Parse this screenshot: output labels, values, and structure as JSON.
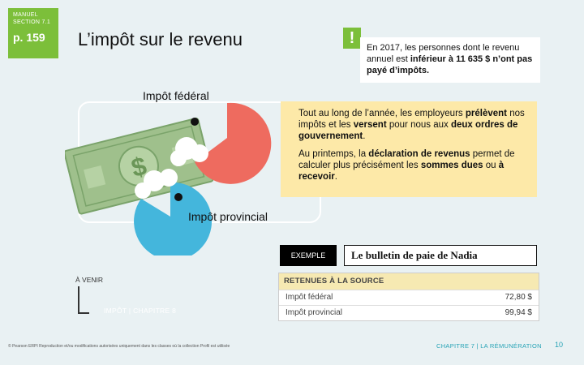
{
  "badge": {
    "manual": "MANUEL",
    "section": "SECTION 7.1",
    "page": "p. 159"
  },
  "title": "L’impôt sur le revenu",
  "alert": {
    "icon": "!",
    "text_before": "En 2017, les personnes dont le revenu annuel est ",
    "bold1": "inférieur à 11 635 $ n’ont pas payé d’impôts."
  },
  "labels": {
    "federal": "Impôt fédéral",
    "provincial": "Impôt provincial"
  },
  "info": {
    "p1_a": "Tout au long de l’année, les employeurs ",
    "p1_b": "prélèvent",
    "p1_c": " nos impôts et les ",
    "p1_d": "versent",
    "p1_e": " pour nous aux ",
    "p1_f": "deux ordres de gouvernement",
    "p1_g": ".",
    "p2_a": "Au printemps, la ",
    "p2_b": "déclaration de revenus",
    "p2_c": " permet  de calculer plus précisément les ",
    "p2_d": "sommes dues",
    "p2_e": " ou ",
    "p2_f": "à recevoir",
    "p2_g": "."
  },
  "example": {
    "tag": "EXEMPLE",
    "title": "Le bulletin de paie de Nadia"
  },
  "stub": {
    "header": "RETENUES À LA SOURCE",
    "rows": [
      {
        "label": "Impôt fédéral",
        "amount": "72,80 $"
      },
      {
        "label": "Impôt provincial",
        "amount": "99,94 $"
      }
    ]
  },
  "venir": {
    "label": "À VENIR",
    "link": "IMPÔT | CHAPITRE 8"
  },
  "footer": {
    "copyright": "© Pearson ERPI  Reproduction et/ou modifications autorisées uniquement dans les classes où la collection Profil est utilisée",
    "chapter": "CHAPITRE 7 | LA RÉMUNÉRATION",
    "page": "10"
  },
  "colors": {
    "green": "#7cbf3a",
    "red": "#ee6b5f",
    "blue": "#44b6dc",
    "yellow": "#fde9a8",
    "money": "#9fc08c",
    "teal": "#27a3b6"
  },
  "icons": {
    "money": "money-bill-icon",
    "alert": "exclamation-icon"
  }
}
